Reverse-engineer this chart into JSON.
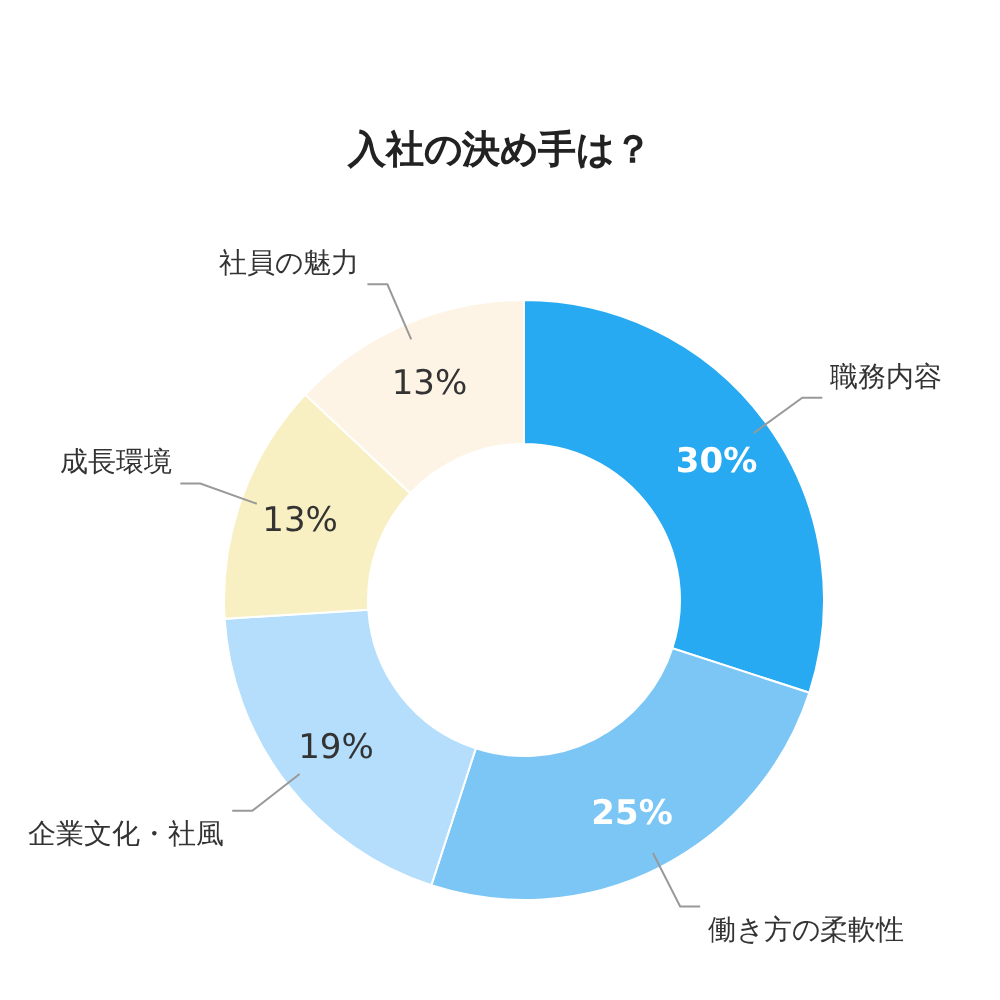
{
  "chart_data": {
    "type": "donut",
    "title": "入社の決め手は？",
    "categories": [
      "職務内容",
      "働き方の柔軟性",
      "企業文化・社風",
      "成長環境",
      "社員の魅力"
    ],
    "values": [
      30,
      25,
      19,
      13,
      13
    ],
    "colors": [
      "#27aaf2",
      "#7cc6f6",
      "#b4defc",
      "#f8f0c2",
      "#fdf4e6"
    ],
    "value_labels": [
      "30%",
      "25%",
      "19%",
      "13%",
      "13%"
    ]
  }
}
